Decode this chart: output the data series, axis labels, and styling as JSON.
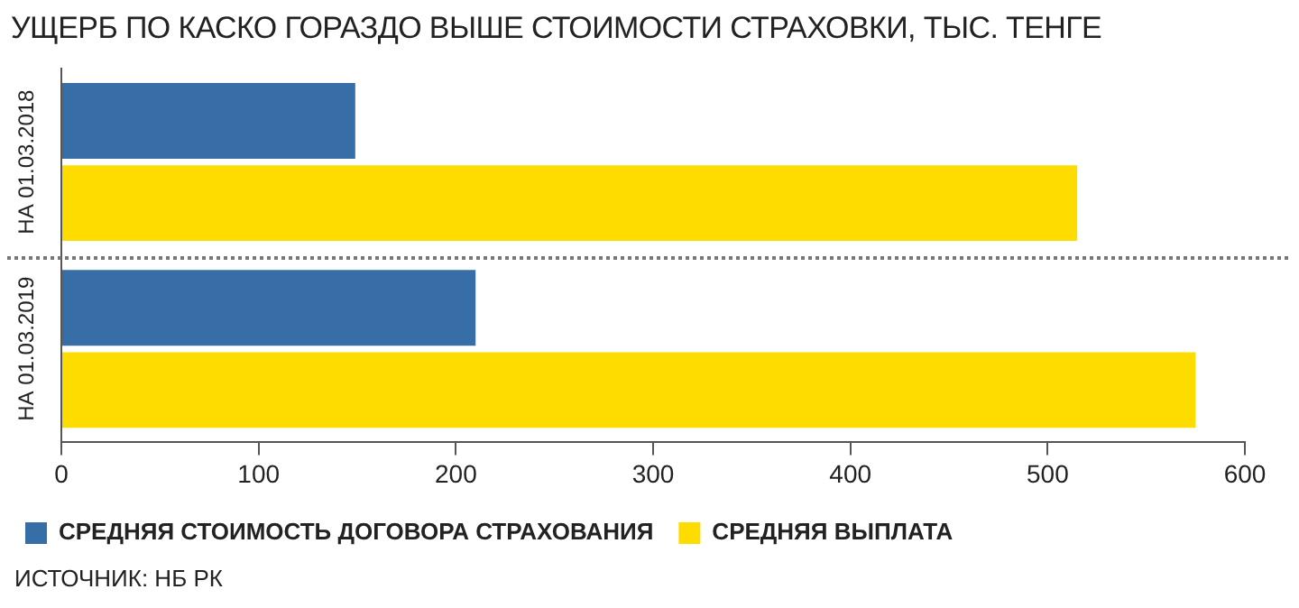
{
  "chart_data": {
    "type": "bar",
    "orientation": "horizontal",
    "title": "УЩЕРБ ПО КАСКО ГОРАЗДО ВЫШЕ СТОИМОСТИ СТРАХОВКИ, ТЫС. ТЕНГЕ",
    "categories": [
      "НА 01.03.2018",
      "НА 01.03.2019"
    ],
    "series": [
      {
        "name": "СРЕДНЯЯ СТОИМОСТЬ ДОГОВОРА СТРАХОВАНИЯ",
        "color": "#386ea8",
        "values": [
          149,
          210
        ]
      },
      {
        "name": "СРЕДНЯЯ ВЫПЛАТА",
        "color": "#ffdc00",
        "values": [
          515,
          575
        ]
      }
    ],
    "xlim": [
      0,
      600
    ],
    "xticks": [
      0,
      100,
      200,
      300,
      400,
      500,
      600
    ],
    "grid": false,
    "legend": "bottom left",
    "annotations": [
      "ИСТОЧНИК: НБ РК"
    ]
  }
}
